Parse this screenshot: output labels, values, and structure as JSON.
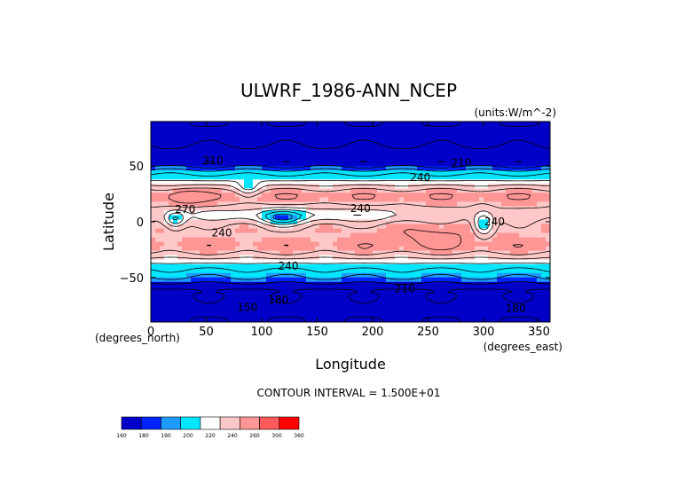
{
  "chart_data": {
    "type": "heatmap",
    "title": "ULWRF_1986-ANN_NCEP",
    "units_label": "(units:W/m^-2)",
    "xlabel": "Longitude",
    "ylabel": "Latitude",
    "x_unit_label": "(degrees_east)",
    "y_unit_label": "(degrees_north)",
    "xlim": [
      0,
      360
    ],
    "ylim": [
      -90,
      90
    ],
    "x_ticks": [
      0,
      50,
      100,
      150,
      200,
      250,
      300,
      350
    ],
    "y_ticks": [
      50,
      0,
      -50
    ],
    "x_tick_labels": [
      "0",
      "50",
      "100",
      "150",
      "200",
      "250",
      "300",
      "350"
    ],
    "y_tick_labels": [
      "50",
      "0",
      "−50"
    ],
    "contour_interval_label": "CONTOUR INTERVAL = 1.500E+01",
    "contour_labels": [
      {
        "text": "210",
        "lon": 56,
        "lat": 55
      },
      {
        "text": "210",
        "lon": 280,
        "lat": 53
      },
      {
        "text": "240",
        "lon": 243,
        "lat": 40
      },
      {
        "text": "240",
        "lon": 189,
        "lat": 12
      },
      {
        "text": "270",
        "lon": 31,
        "lat": 11
      },
      {
        "text": "240",
        "lon": 64,
        "lat": -10
      },
      {
        "text": "240",
        "lon": 124,
        "lat": -40
      },
      {
        "text": "210",
        "lon": 229,
        "lat": -60
      },
      {
        "text": "180",
        "lon": 115,
        "lat": -70
      },
      {
        "text": "150",
        "lon": 87,
        "lat": -77
      },
      {
        "text": "180",
        "lon": 329,
        "lat": -78
      },
      {
        "text": "240",
        "lon": 310,
        "lat": 0
      }
    ],
    "colorbar": {
      "levels": [
        "160",
        "180",
        "190",
        "200",
        "220",
        "240",
        "260",
        "300",
        "360"
      ],
      "colors": [
        "#0000c8",
        "#0024ff",
        "#1e9bff",
        "#00e6ff",
        "#ffffff",
        "#ffc8c8",
        "#ff9696",
        "#ff5a5a",
        "#ff0000"
      ]
    },
    "grid": false
  }
}
